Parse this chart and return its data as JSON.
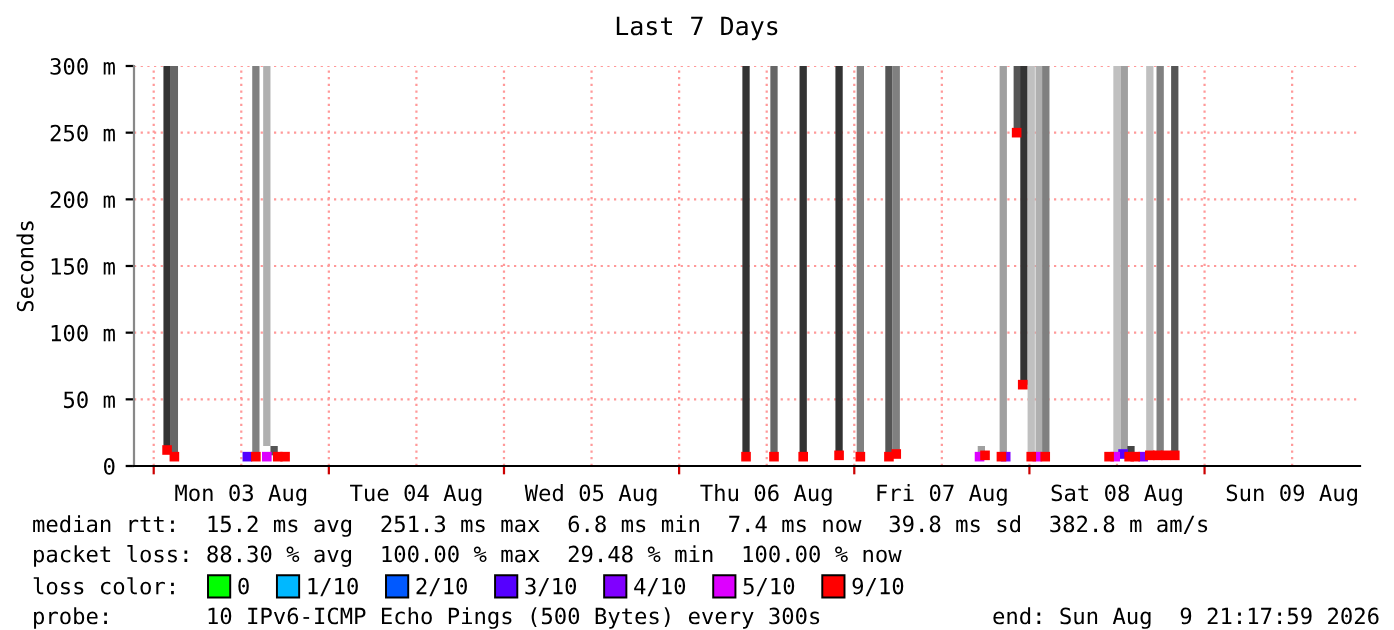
{
  "chart_data": {
    "type": "bar",
    "title": "Last 7 Days",
    "ylabel": "Seconds",
    "xlim": [
      "2026-08-02T21:18",
      "2026-08-09T21:18"
    ],
    "xticks": [
      {
        "value": "2026-08-03T00:00",
        "label": null
      },
      {
        "value": "2026-08-03T12:00",
        "label": "Mon 03 Aug"
      },
      {
        "value": "2026-08-04T00:00",
        "label": null
      },
      {
        "value": "2026-08-04T12:00",
        "label": "Tue 04 Aug"
      },
      {
        "value": "2026-08-05T00:00",
        "label": null
      },
      {
        "value": "2026-08-05T12:00",
        "label": "Wed 05 Aug"
      },
      {
        "value": "2026-08-06T00:00",
        "label": null
      },
      {
        "value": "2026-08-06T12:00",
        "label": "Thu 06 Aug"
      },
      {
        "value": "2026-08-07T00:00",
        "label": null
      },
      {
        "value": "2026-08-07T12:00",
        "label": "Fri 07 Aug"
      },
      {
        "value": "2026-08-08T00:00",
        "label": null
      },
      {
        "value": "2026-08-08T12:00",
        "label": "Sat 08 Aug"
      },
      {
        "value": "2026-08-09T00:00",
        "label": null
      },
      {
        "value": "2026-08-09T12:00",
        "label": "Sun 09 Aug"
      }
    ],
    "ylim": [
      0,
      300
    ],
    "yticks": [
      0,
      {
        "value": 50,
        "label": "50 m"
      },
      {
        "value": 100,
        "label": "100 m"
      },
      {
        "value": 150,
        "label": "150 m"
      },
      {
        "value": 200,
        "label": "200 m"
      },
      {
        "value": 250,
        "label": "250 m"
      },
      {
        "value": 300,
        "label": "300 m"
      }
    ],
    "grid": true,
    "legend": "bottom",
    "legend_title": "loss color:",
    "marker": "square",
    "series": [
      {
        "x": [
          "2026-08-03T01:50",
          "2026-08-03T02:50",
          "2026-08-03T14:00",
          "2026-08-03T15:30",
          "2026-08-03T16:30",
          "2026-08-06T09:10",
          "2026-08-06T13:00",
          "2026-08-06T17:00",
          "2026-08-06T21:55",
          "2026-08-07T00:50",
          "2026-08-07T04:45",
          "2026-08-07T05:45",
          "2026-08-07T17:25",
          "2026-08-07T20:25",
          "2026-08-07T22:20",
          "2026-08-07T23:15",
          "2026-08-08T00:15",
          "2026-08-08T01:20",
          "2026-08-08T02:15",
          "2026-08-08T12:00",
          "2026-08-08T13:00",
          "2026-08-08T13:55",
          "2026-08-08T16:30",
          "2026-08-08T17:55",
          "2026-08-08T19:55"
        ],
        "base": [
          12,
          7,
          8,
          15,
          8,
          7,
          7,
          7,
          8,
          7,
          7,
          9,
          7,
          8,
          250,
          61,
          7,
          7,
          7,
          7,
          7,
          8,
          7,
          8,
          8
        ],
        "values": [
          288,
          293,
          292,
          285,
          7,
          293,
          293,
          293,
          292,
          293,
          293,
          291,
          8,
          292,
          50,
          239,
          293,
          293,
          293,
          293,
          293,
          7,
          293,
          292,
          292
        ],
        "colors": [
          "#333333",
          "#666666",
          "#808080",
          "#b0b0b0",
          "#555555",
          "#333333",
          "#666666",
          "#333333",
          "#333333",
          "#808080",
          "#555555",
          "#808080",
          "#a0a0a0",
          "#a0a0a0",
          "#555555",
          "#333333",
          "#c0c0c0",
          "#b0b0b0",
          "#808080",
          "#c0c0c0",
          "#a0a0a0",
          "#444444",
          "#c0c0c0",
          "#808080",
          "#555555"
        ]
      },
      {
        "type": "scatter",
        "name": "0",
        "color": "#00ff00"
      },
      {
        "type": "scatter",
        "name": "1/10",
        "color": "#00b8ff"
      },
      {
        "type": "scatter",
        "name": "2/10",
        "color": "#0059ff"
      },
      {
        "type": "scatter",
        "name": "3/10",
        "color": "#5500ff",
        "x": [
          "2026-08-03T12:50",
          "2026-08-08T12:50"
        ],
        "values": [
          7,
          9
        ]
      },
      {
        "type": "scatter",
        "name": "4/10",
        "color": "#8000ff",
        "x": [
          "2026-08-07T20:45",
          "2026-08-08T15:35"
        ],
        "values": [
          7,
          7
        ]
      },
      {
        "type": "scatter",
        "name": "5/10",
        "color": "#dd00ff",
        "x": [
          "2026-08-03T15:30",
          "2026-08-07T17:10",
          "2026-08-08T01:05",
          "2026-08-08T11:45"
        ],
        "values": [
          7,
          7,
          7,
          7
        ]
      },
      {
        "type": "scatter",
        "name": "9/10",
        "color": "#ff0000",
        "x": [
          "2026-08-03T01:50",
          "2026-08-03T02:50",
          "2026-08-03T14:00",
          "2026-08-03T17:00",
          "2026-08-03T18:00",
          "2026-08-06T09:10",
          "2026-08-06T13:00",
          "2026-08-06T17:00",
          "2026-08-06T21:55",
          "2026-08-07T00:50",
          "2026-08-07T04:45",
          "2026-08-07T05:45",
          "2026-08-07T17:55",
          "2026-08-07T20:10",
          "2026-08-07T22:15",
          "2026-08-07T23:05",
          "2026-08-08T00:15",
          "2026-08-08T02:10",
          "2026-08-08T10:55",
          "2026-08-08T13:40",
          "2026-08-08T14:30",
          "2026-08-08T16:30",
          "2026-08-08T17:35",
          "2026-08-08T18:40",
          "2026-08-08T19:55"
        ],
        "values": [
          12,
          7,
          7,
          7,
          7,
          7,
          7,
          7,
          8,
          7,
          7,
          9,
          8,
          7,
          250,
          61,
          7,
          7,
          7,
          7,
          7,
          8,
          8,
          8,
          8
        ]
      }
    ],
    "annotations": [
      "median rtt:  15.2 ms avg  251.3 ms max  6.8 ms min  7.4 ms now  39.8 ms sd  382.8 m am/s",
      "packet loss: 88.30 % avg  100.00 % max  29.48 % min  100.00 % now",
      "probe:       10 IPv6-ICMP Echo Pings (500 Bytes) every 300s",
      "end: Sun Aug  9 21:17:59 2026"
    ]
  }
}
